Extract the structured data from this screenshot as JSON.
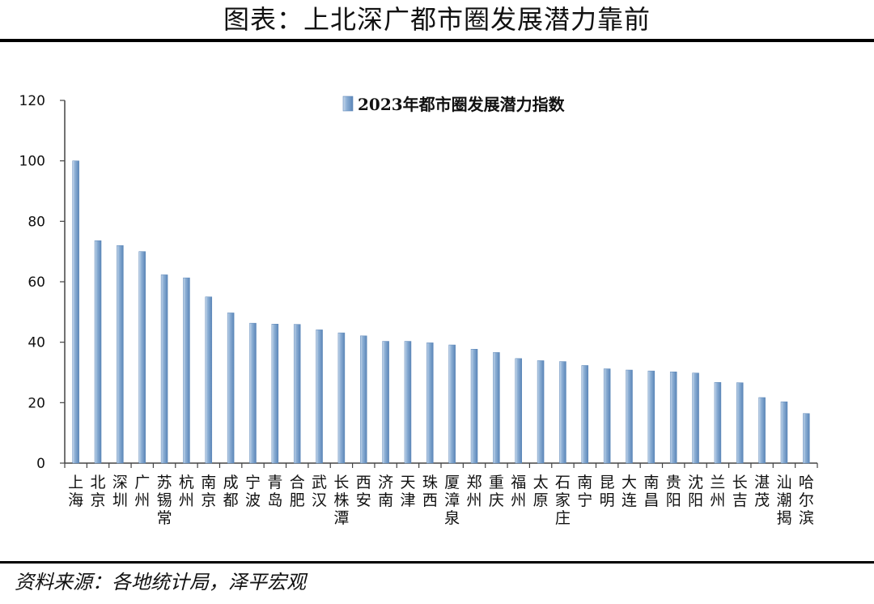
{
  "title": "图表：上北深广都市圈发展潜力靠前",
  "source": "资料来源：各地统计局，泽平宏观",
  "colors": {
    "bar_light": "#c9d9ec",
    "bar_mid": "#8fb1d6",
    "bar_dark": "#5b86b8",
    "axis": "#444444"
  },
  "chart_data": {
    "type": "bar",
    "title": "",
    "xlabel": "",
    "ylabel": "",
    "ylim": [
      0,
      120
    ],
    "yticks": [
      0,
      20,
      40,
      60,
      80,
      100,
      120
    ],
    "legend": {
      "position": "top",
      "label": "2023年都市圈发展潜力指数"
    },
    "series": [
      {
        "name": "2023年都市圈发展潜力指数",
        "values": [
          100,
          73.6,
          72,
          70,
          62.3,
          61.3,
          55,
          49.7,
          46.3,
          46,
          45.9,
          44.1,
          43.1,
          42.1,
          40.3,
          40.3,
          39.8,
          39.1,
          37.7,
          36.6,
          34.6,
          33.9,
          33.6,
          32.3,
          31.2,
          30.8,
          30.5,
          30.2,
          29.8,
          26.7,
          26.6,
          21.7,
          20.3,
          16.4
        ]
      }
    ],
    "categories": [
      "上海",
      "北京",
      "深圳",
      "广州",
      "苏锡常",
      "杭州",
      "南京",
      "成都",
      "宁波",
      "青岛",
      "合肥",
      "武汉",
      "长株潭",
      "西安",
      "济南",
      "天津",
      "珠西",
      "厦漳泉",
      "郑州",
      "重庆",
      "福州",
      "太原",
      "石家庄",
      "南宁",
      "昆明",
      "大连",
      "南昌",
      "贵阳",
      "沈阳",
      "兰州",
      "长吉",
      "湛茂",
      "汕潮揭",
      "哈尔滨"
    ]
  }
}
